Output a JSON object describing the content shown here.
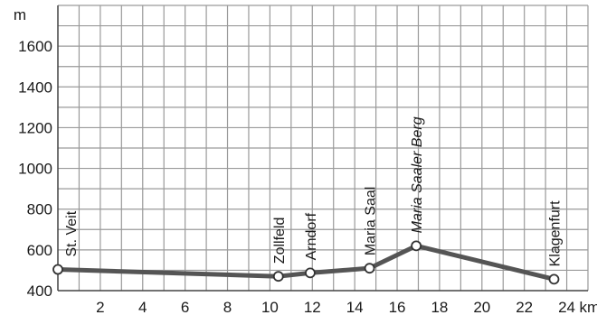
{
  "chart_data": {
    "type": "line",
    "ylabel": "m",
    "xlabel": "km",
    "xlim": [
      0,
      25
    ],
    "ylim": [
      400,
      1800
    ],
    "x_ticks": [
      2,
      4,
      6,
      8,
      10,
      12,
      14,
      16,
      18,
      20,
      22,
      24
    ],
    "y_ticks": [
      400,
      600,
      800,
      1000,
      1200,
      1400,
      1600
    ],
    "grid": true,
    "line_color": "#555555",
    "grid_color": "#9a9a9a",
    "points": [
      {
        "x": 0,
        "y": 504,
        "label": "St. Veit",
        "italic": false
      },
      {
        "x": 10.4,
        "y": 470,
        "label": "Zollfeld",
        "italic": false
      },
      {
        "x": 11.9,
        "y": 487,
        "label": "Arndorf",
        "italic": false
      },
      {
        "x": 14.7,
        "y": 510,
        "label": "Maria Saal",
        "italic": false
      },
      {
        "x": 16.9,
        "y": 620,
        "label": "Maria Saaler Berg",
        "italic": true
      },
      {
        "x": 23.4,
        "y": 456,
        "label": "Klagenfurt",
        "italic": false
      }
    ]
  }
}
